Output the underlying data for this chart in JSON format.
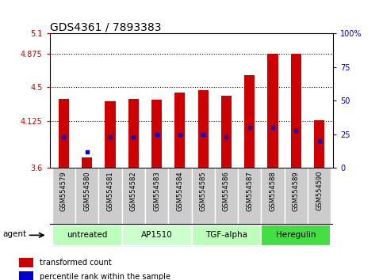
{
  "title": "GDS4361 / 7893383",
  "samples": [
    "GSM554579",
    "GSM554580",
    "GSM554581",
    "GSM554582",
    "GSM554583",
    "GSM554584",
    "GSM554585",
    "GSM554586",
    "GSM554587",
    "GSM554588",
    "GSM554589",
    "GSM554590"
  ],
  "bar_values": [
    4.375,
    3.72,
    4.345,
    4.375,
    4.36,
    4.44,
    4.47,
    4.41,
    4.64,
    4.875,
    4.875,
    4.13
  ],
  "percentile_values": [
    23,
    12,
    23,
    23,
    25,
    25,
    25,
    23,
    30,
    30,
    28,
    20
  ],
  "ylim_left": [
    3.6,
    5.1
  ],
  "ylim_right": [
    0,
    100
  ],
  "yticks_left": [
    3.6,
    4.125,
    4.5,
    4.875,
    5.1
  ],
  "yticks_right": [
    0,
    25,
    50,
    75,
    100
  ],
  "ytick_labels_left": [
    "3.6",
    "4.125",
    "4.5",
    "4.875",
    "5.1"
  ],
  "ytick_labels_right": [
    "0",
    "25",
    "50",
    "75",
    "100%"
  ],
  "hlines": [
    4.125,
    4.5,
    4.875
  ],
  "bar_color": "#cc0000",
  "percentile_color": "#0000cc",
  "bar_bottom": 3.6,
  "groups": [
    {
      "label": "untreated",
      "start": 0,
      "end": 3,
      "color": "#bbffbb"
    },
    {
      "label": "AP1510",
      "start": 3,
      "end": 6,
      "color": "#ccffcc"
    },
    {
      "label": "TGF-alpha",
      "start": 6,
      "end": 9,
      "color": "#bbffbb"
    },
    {
      "label": "Heregulin",
      "start": 9,
      "end": 12,
      "color": "#44dd44"
    }
  ],
  "legend_bar_label": "transformed count",
  "legend_pct_label": "percentile rank within the sample",
  "agent_label": "agent",
  "bg_color": "#ffffff",
  "plot_bg_color": "#ffffff",
  "tick_label_bg": "#cccccc",
  "tick_color_left": "#cc0000",
  "tick_color_right": "#0000cc",
  "bar_width": 0.45,
  "title_fontsize": 10
}
